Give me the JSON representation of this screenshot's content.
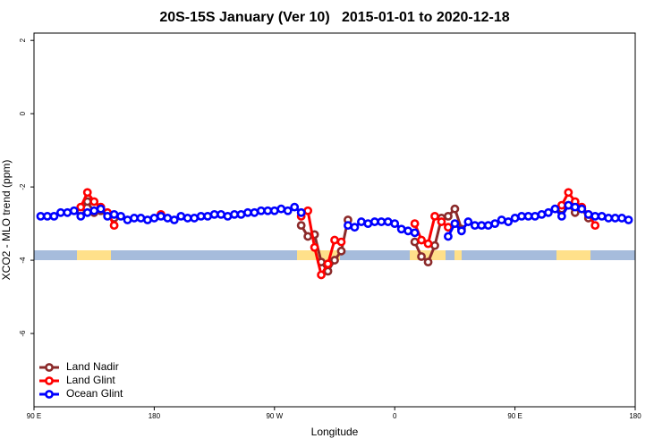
{
  "chart_data": {
    "type": "line",
    "title": "20S-15S January (Ver 10)   2015-01-01 to 2020-12-18",
    "x_label": "Longitude",
    "y_label": "XCO2 - MLO trend (ppm)",
    "x": [
      95,
      100,
      105,
      110,
      115,
      120,
      125,
      130,
      135,
      140,
      145,
      150,
      155,
      160,
      165,
      170,
      175,
      180,
      185,
      190,
      195,
      200,
      205,
      210,
      215,
      220,
      225,
      230,
      235,
      240,
      245,
      250,
      255,
      260,
      265,
      270,
      275,
      280,
      285,
      290,
      295,
      300,
      305,
      310,
      315,
      320,
      325,
      330,
      335,
      340,
      345,
      350,
      355,
      360,
      365,
      370,
      375,
      380,
      385,
      390,
      395,
      400,
      405,
      410,
      415,
      420,
      425,
      430,
      435,
      440,
      445,
      450,
      455,
      460,
      465,
      470,
      475,
      480,
      485,
      490,
      495,
      500,
      505,
      510,
      515,
      520,
      525,
      530,
      535
    ],
    "xlim": [
      90,
      540
    ],
    "xticks": [
      {
        "value": 90,
        "label": "90 E"
      },
      180,
      {
        "value": 270,
        "label": "90 W"
      },
      {
        "value": 360,
        "label": "0"
      },
      {
        "value": 450,
        "label": "90 E"
      },
      {
        "value": 540,
        "label": "180"
      }
    ],
    "ylim": [
      -8,
      2.2
    ],
    "yticks": [
      2,
      0,
      -2,
      -4,
      -6
    ],
    "legend": "bottom-left",
    "series": [
      {
        "name": "Land Nadir",
        "color": "#8b2a2a",
        "values": [
          null,
          null,
          null,
          null,
          null,
          null,
          -2.65,
          -2.4,
          -2.7,
          -2.65,
          -2.75,
          -2.85,
          null,
          null,
          null,
          null,
          null,
          null,
          null,
          null,
          null,
          null,
          null,
          null,
          null,
          null,
          null,
          null,
          null,
          null,
          null,
          null,
          null,
          null,
          null,
          null,
          null,
          null,
          null,
          -3.05,
          -3.35,
          -3.3,
          -4.05,
          -4.3,
          -4.0,
          -3.75,
          -2.9,
          null,
          null,
          null,
          null,
          null,
          null,
          null,
          null,
          null,
          -3.5,
          -3.9,
          -4.05,
          -3.6,
          -2.85,
          -2.8,
          -2.6,
          -3.15,
          null,
          null,
          null,
          null,
          null,
          null,
          null,
          null,
          null,
          null,
          null,
          null,
          null,
          null,
          -2.6,
          -2.5,
          -2.7,
          -2.6,
          -2.85,
          null,
          null,
          null,
          null,
          null,
          null
        ]
      },
      {
        "name": "Land Glint",
        "color": "#ff0000",
        "values": [
          null,
          null,
          null,
          null,
          null,
          null,
          -2.55,
          -2.15,
          -2.4,
          -2.55,
          -2.7,
          -3.05,
          null,
          null,
          null,
          null,
          null,
          null,
          -2.75,
          null,
          null,
          null,
          null,
          null,
          null,
          null,
          null,
          null,
          null,
          null,
          null,
          null,
          null,
          null,
          null,
          null,
          null,
          null,
          null,
          -2.8,
          -2.65,
          -3.65,
          -4.4,
          -4.1,
          -3.45,
          -3.5,
          null,
          null,
          null,
          null,
          null,
          null,
          null,
          null,
          null,
          null,
          -3.0,
          -3.45,
          -3.55,
          -2.8,
          -2.95,
          -3.1,
          null,
          null,
          null,
          null,
          null,
          null,
          null,
          null,
          null,
          null,
          null,
          null,
          null,
          null,
          null,
          null,
          -2.5,
          -2.15,
          -2.4,
          -2.55,
          -2.75,
          -3.05,
          null,
          null,
          null,
          null,
          null
        ]
      },
      {
        "name": "Ocean Glint",
        "color": "#0000ff",
        "values": [
          -2.8,
          -2.8,
          -2.8,
          -2.7,
          -2.7,
          -2.65,
          -2.8,
          -2.7,
          -2.65,
          -2.6,
          -2.8,
          -2.75,
          -2.8,
          -2.9,
          -2.85,
          -2.85,
          -2.9,
          -2.85,
          -2.8,
          -2.85,
          -2.9,
          -2.8,
          -2.85,
          -2.85,
          -2.8,
          -2.8,
          -2.75,
          -2.75,
          -2.8,
          -2.75,
          -2.75,
          -2.7,
          -2.7,
          -2.65,
          -2.65,
          -2.65,
          -2.6,
          -2.65,
          -2.55,
          -2.7,
          null,
          null,
          null,
          null,
          null,
          null,
          -3.05,
          -3.1,
          -2.95,
          -3.0,
          -2.95,
          -2.95,
          -2.95,
          -3.0,
          -3.15,
          -3.2,
          -3.25,
          null,
          null,
          null,
          null,
          -3.35,
          -3.0,
          -3.2,
          -2.95,
          -3.05,
          -3.05,
          -3.05,
          -3.0,
          -2.9,
          -2.95,
          -2.85,
          -2.8,
          -2.8,
          -2.8,
          -2.75,
          -2.7,
          -2.6,
          -2.8,
          -2.5,
          -2.55,
          -2.6,
          -2.75,
          -2.8,
          -2.8,
          -2.85,
          -2.85,
          -2.85,
          -2.9
        ]
      }
    ]
  }
}
